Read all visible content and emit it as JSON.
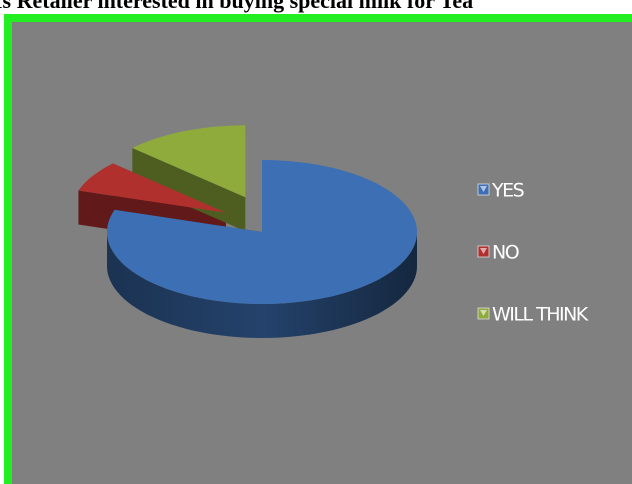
{
  "chart_data": {
    "type": "pie3d",
    "title": "Is Retailer interested in buying special milk for Tea",
    "categories": [
      "YES",
      "NO",
      "WILL THINK"
    ],
    "values": [
      80,
      7,
      13
    ],
    "colors": [
      "#3c6fb4",
      "#b0302e",
      "#8eab3c"
    ],
    "legend": "right"
  }
}
